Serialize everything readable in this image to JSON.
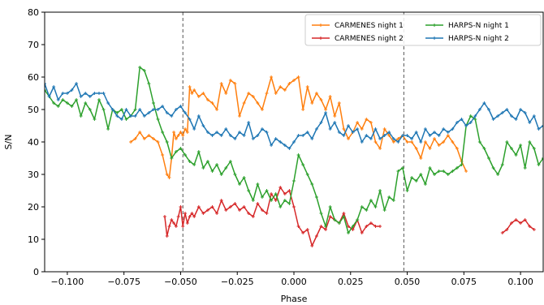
{
  "chart_data": {
    "type": "line",
    "xlabel": "Phase",
    "ylabel": "S/N",
    "xlim": [
      -0.11,
      0.11
    ],
    "ylim": [
      0,
      80
    ],
    "xticks": [
      -0.1,
      -0.075,
      -0.05,
      -0.025,
      0.0,
      0.025,
      0.05,
      0.075,
      0.1
    ],
    "xtick_labels": [
      "−0.100",
      "−0.075",
      "−0.050",
      "−0.025",
      "0.000",
      "0.025",
      "0.050",
      "0.075",
      "0.100"
    ],
    "yticks": [
      0,
      10,
      20,
      30,
      40,
      50,
      60,
      70,
      80
    ],
    "ytick_labels": [
      "0",
      "10",
      "20",
      "30",
      "40",
      "50",
      "60",
      "70",
      "80"
    ],
    "vlines": [
      -0.049,
      0.0485
    ],
    "legend_position": "top-right",
    "grid": false,
    "series": [
      {
        "name": "CARMENES night 1",
        "color": "#ff7f0e",
        "x": [
          -0.072,
          -0.07,
          -0.068,
          -0.066,
          -0.064,
          -0.062,
          -0.06,
          -0.058,
          -0.056,
          -0.055,
          -0.054,
          -0.053,
          -0.052,
          -0.051,
          -0.05,
          -0.049,
          -0.048,
          -0.047,
          -0.046,
          -0.045,
          -0.044,
          -0.042,
          -0.04,
          -0.038,
          -0.036,
          -0.034,
          -0.032,
          -0.03,
          -0.028,
          -0.026,
          -0.024,
          -0.022,
          -0.02,
          -0.018,
          -0.016,
          -0.014,
          -0.012,
          -0.01,
          -0.008,
          -0.006,
          -0.004,
          -0.002,
          0.0,
          0.002,
          0.004,
          0.006,
          0.008,
          0.01,
          0.012,
          0.014,
          0.016,
          0.018,
          0.02,
          0.022,
          0.024,
          0.026,
          0.028,
          0.03,
          0.032,
          0.034,
          0.036,
          0.038,
          0.04,
          0.042,
          0.044,
          0.046,
          0.048,
          0.05,
          0.052,
          0.054,
          0.056,
          0.058,
          0.06,
          0.062,
          0.064,
          0.066,
          0.068,
          0.07,
          0.072,
          0.074,
          0.076
        ],
        "y": [
          40,
          41,
          43,
          41,
          42,
          41,
          40,
          36,
          30,
          29,
          35,
          43,
          41,
          42,
          43,
          42,
          44,
          43,
          57,
          55,
          56,
          54,
          55,
          53,
          52,
          50,
          58,
          55,
          59,
          58,
          48,
          52,
          55,
          54,
          52,
          50,
          55,
          60,
          55,
          57,
          56,
          58,
          59,
          60,
          50,
          57,
          52,
          55,
          53,
          50,
          54,
          48,
          52,
          44,
          41,
          43,
          46,
          44,
          47,
          46,
          40,
          38,
          44,
          42,
          40,
          41,
          42,
          40,
          40,
          38,
          35,
          40,
          38,
          41,
          39,
          40,
          42,
          40,
          38,
          34,
          31
        ]
      },
      {
        "name": "CARMENES night 2",
        "color": "#d62728",
        "x": [
          -0.057,
          -0.056,
          -0.055,
          -0.054,
          -0.053,
          -0.052,
          -0.051,
          -0.05,
          -0.049,
          -0.048,
          -0.047,
          -0.046,
          -0.045,
          -0.044,
          -0.042,
          -0.04,
          -0.038,
          -0.036,
          -0.034,
          -0.032,
          -0.03,
          -0.028,
          -0.026,
          -0.024,
          -0.022,
          -0.02,
          -0.018,
          -0.016,
          -0.014,
          -0.012,
          -0.01,
          -0.008,
          -0.006,
          -0.004,
          -0.002,
          0.0,
          0.002,
          0.004,
          0.006,
          0.008,
          0.01,
          0.012,
          0.014,
          0.016,
          0.018,
          0.02,
          0.022,
          0.024,
          0.026,
          0.028,
          0.03,
          0.032,
          0.034,
          0.036,
          0.038,
          null,
          0.092,
          0.094,
          0.096,
          0.098,
          0.1,
          0.102,
          0.104,
          0.106
        ],
        "y": [
          17,
          11,
          14,
          16,
          15,
          14,
          17,
          20,
          14,
          18,
          15,
          17,
          18,
          17,
          20,
          18,
          19,
          20,
          18,
          22,
          19,
          20,
          21,
          19,
          20,
          18,
          17,
          21,
          19,
          18,
          24,
          22,
          26,
          24,
          25,
          20,
          14,
          12,
          13,
          8,
          11,
          14,
          13,
          17,
          16,
          15,
          18,
          14,
          13,
          16,
          12,
          14,
          15,
          14,
          14,
          null,
          12,
          13,
          15,
          16,
          15,
          16,
          14,
          13
        ]
      },
      {
        "name": "HARPS-N night 1",
        "color": "#2ca02c",
        "x": [
          -0.11,
          -0.108,
          -0.106,
          -0.104,
          -0.102,
          -0.1,
          -0.098,
          -0.096,
          -0.094,
          -0.092,
          -0.09,
          -0.088,
          -0.086,
          -0.084,
          -0.082,
          -0.08,
          -0.078,
          -0.076,
          -0.074,
          -0.072,
          -0.07,
          -0.068,
          -0.066,
          -0.064,
          -0.062,
          -0.06,
          -0.058,
          -0.056,
          -0.054,
          -0.052,
          -0.05,
          -0.048,
          -0.046,
          -0.044,
          -0.042,
          -0.04,
          -0.038,
          -0.036,
          -0.034,
          -0.032,
          -0.03,
          -0.028,
          -0.026,
          -0.024,
          -0.022,
          -0.02,
          -0.018,
          -0.016,
          -0.014,
          -0.012,
          -0.01,
          -0.008,
          -0.006,
          -0.004,
          -0.002,
          0.0,
          0.002,
          0.004,
          0.006,
          0.008,
          0.01,
          0.012,
          0.014,
          0.016,
          0.018,
          0.02,
          0.022,
          0.024,
          0.026,
          0.028,
          0.03,
          0.032,
          0.034,
          0.036,
          0.038,
          0.04,
          0.042,
          0.044,
          0.046,
          0.048,
          0.05,
          0.052,
          0.054,
          0.056,
          0.058,
          0.06,
          0.062,
          0.064,
          0.066,
          0.068,
          0.07,
          0.072,
          0.074,
          0.076,
          0.078,
          0.08,
          0.082,
          0.084,
          0.086,
          0.088,
          0.09,
          0.092,
          0.094,
          0.096,
          0.098,
          0.1,
          0.102,
          0.104,
          0.106,
          0.108,
          0.11
        ],
        "y": [
          56,
          54,
          52,
          51,
          53,
          52,
          51,
          53,
          48,
          52,
          50,
          47,
          53,
          50,
          44,
          50,
          49,
          50,
          47,
          48,
          50,
          63,
          62,
          58,
          52,
          47,
          43,
          40,
          35,
          37,
          38,
          36,
          34,
          33,
          37,
          32,
          34,
          31,
          33,
          30,
          32,
          34,
          30,
          27,
          29,
          25,
          22,
          27,
          23,
          25,
          22,
          24,
          20,
          22,
          21,
          28,
          36,
          33,
          30,
          27,
          23,
          18,
          14,
          20,
          16,
          15,
          17,
          12,
          14,
          16,
          20,
          19,
          22,
          20,
          25,
          19,
          23,
          22,
          31,
          32,
          25,
          29,
          28,
          30,
          27,
          32,
          30,
          31,
          31,
          30,
          31,
          32,
          33,
          45,
          48,
          47,
          40,
          38,
          35,
          32,
          30,
          33,
          40,
          38,
          36,
          39,
          32,
          40,
          38,
          33,
          35
        ]
      },
      {
        "name": "HARPS-N night 2",
        "color": "#1f77b4",
        "x": [
          -0.11,
          -0.108,
          -0.106,
          -0.104,
          -0.102,
          -0.1,
          -0.098,
          -0.096,
          -0.094,
          -0.092,
          -0.09,
          -0.088,
          -0.086,
          -0.084,
          -0.082,
          -0.08,
          -0.078,
          -0.076,
          -0.074,
          -0.072,
          -0.07,
          -0.068,
          -0.066,
          -0.064,
          -0.062,
          -0.06,
          -0.058,
          -0.056,
          -0.054,
          -0.052,
          -0.05,
          -0.048,
          -0.046,
          -0.044,
          -0.042,
          -0.04,
          -0.038,
          -0.036,
          -0.034,
          -0.032,
          -0.03,
          -0.028,
          -0.026,
          -0.024,
          -0.022,
          -0.02,
          -0.018,
          -0.016,
          -0.014,
          -0.012,
          -0.01,
          -0.008,
          -0.006,
          -0.004,
          -0.002,
          0.0,
          0.002,
          0.004,
          0.006,
          0.008,
          0.01,
          0.012,
          0.014,
          0.016,
          0.018,
          0.02,
          0.022,
          0.024,
          0.026,
          0.028,
          0.03,
          0.032,
          0.034,
          0.036,
          0.038,
          0.04,
          0.042,
          0.044,
          0.046,
          0.048,
          0.05,
          0.052,
          0.054,
          0.056,
          0.058,
          0.06,
          0.062,
          0.064,
          0.066,
          0.068,
          0.07,
          0.072,
          0.074,
          0.076,
          0.078,
          0.08,
          0.082,
          0.084,
          0.086,
          0.088,
          0.09,
          0.092,
          0.094,
          0.096,
          0.098,
          0.1,
          0.102,
          0.104,
          0.106,
          0.108,
          0.11
        ],
        "y": [
          58,
          54,
          57,
          53,
          55,
          55,
          56,
          58,
          54,
          55,
          54,
          55,
          55,
          55,
          52,
          50,
          48,
          47,
          50,
          48,
          48,
          50,
          48,
          49,
          50,
          50,
          51,
          49,
          48,
          50,
          51,
          49,
          47,
          44,
          48,
          45,
          43,
          42,
          43,
          42,
          44,
          42,
          41,
          43,
          42,
          46,
          41,
          42,
          44,
          43,
          39,
          41,
          40,
          39,
          38,
          40,
          42,
          42,
          43,
          41,
          44,
          46,
          49,
          44,
          46,
          43,
          42,
          45,
          43,
          44,
          40,
          42,
          41,
          44,
          41,
          42,
          43,
          41,
          40,
          42,
          42,
          41,
          43,
          40,
          44,
          42,
          43,
          42,
          44,
          43,
          44,
          46,
          47,
          45,
          46,
          48,
          50,
          52,
          50,
          47,
          48,
          49,
          50,
          48,
          47,
          50,
          49,
          46,
          48,
          44,
          45
        ]
      }
    ]
  }
}
